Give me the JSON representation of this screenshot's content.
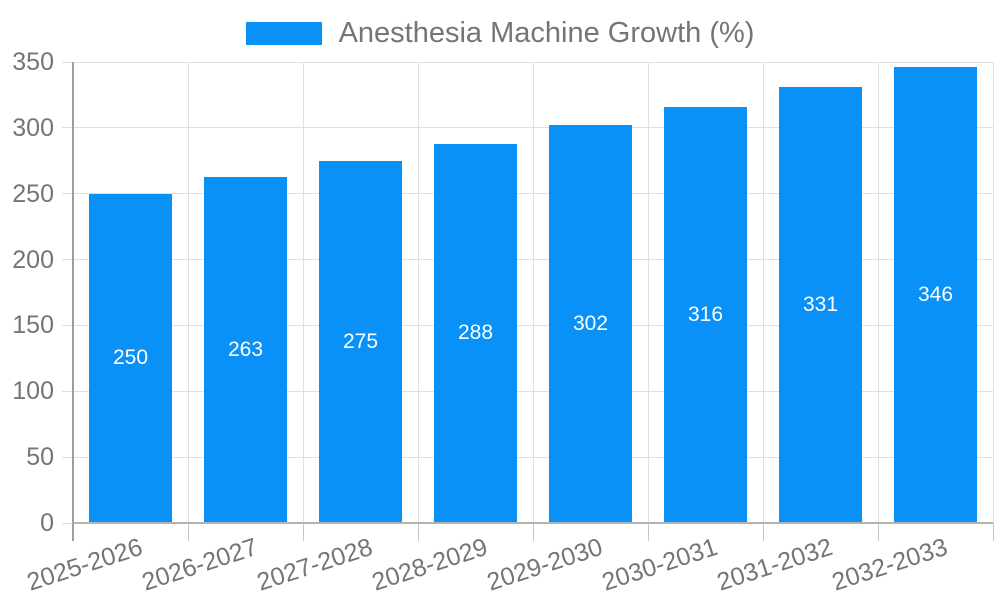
{
  "chart_data": {
    "type": "bar",
    "legend": {
      "label": "Anesthesia Machine Growth (%)",
      "position": "top"
    },
    "categories": [
      "2025-2026",
      "2026-2027",
      "2027-2028",
      "2028-2029",
      "2029-2030",
      "2030-2031",
      "2031-2032",
      "2032-2033"
    ],
    "values": [
      250,
      263,
      275,
      288,
      302,
      316,
      331,
      346
    ],
    "title": "",
    "xlabel": "",
    "ylabel": "",
    "ylim": [
      0,
      350
    ],
    "yticks": [
      0,
      50,
      100,
      150,
      200,
      250,
      300,
      350
    ],
    "grid": true,
    "x_label_rotation_deg": -18,
    "colors": {
      "bar_fill": "#0991f8",
      "value_label": "#ffffff",
      "axis_text": "#757575",
      "gridline": "#e0e0e0",
      "tick": "#c4c4c4",
      "y_axis_line": "#9e9e9e",
      "x_axis_line": "#b3b3b3",
      "background": "#ffffff"
    }
  }
}
